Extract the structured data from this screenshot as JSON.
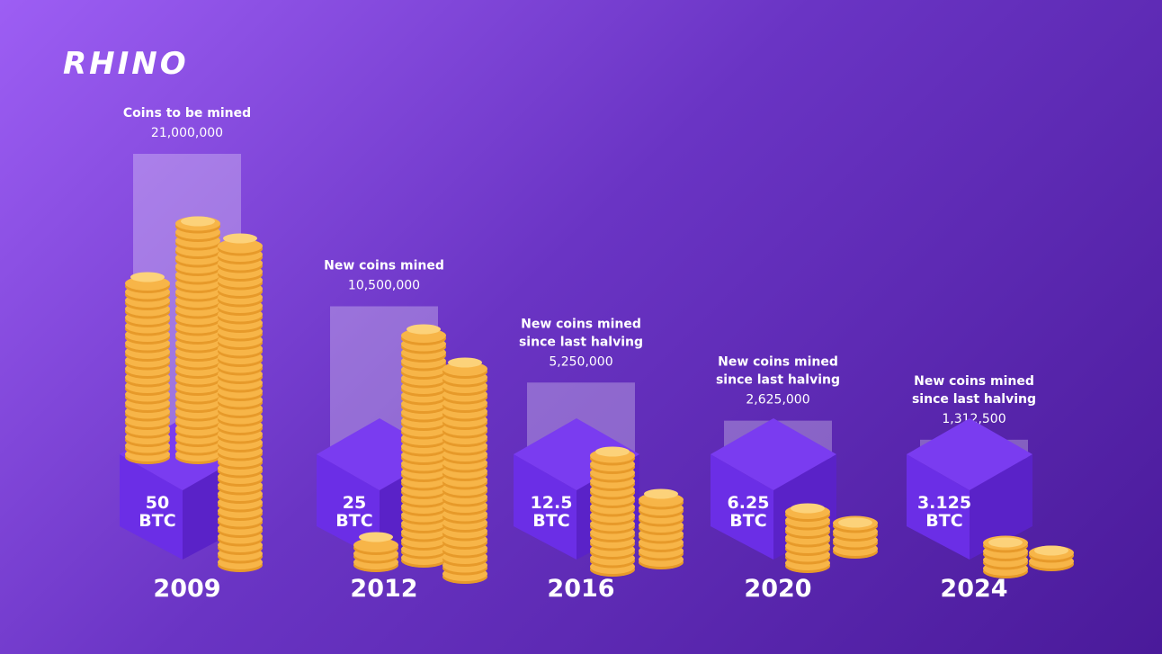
{
  "brand": {
    "logo_text": "RHINO"
  },
  "colors": {
    "bg_start": "#9d5ef4",
    "bg_end": "#4a1a9a",
    "cube_top": "#7a3cf0",
    "cube_left": "#6b2ee6",
    "cube_right": "#5a22c8",
    "coin": "#f7b548",
    "coin_edge": "#e79a2a",
    "bar": "#ffffff"
  },
  "chart_data": {
    "type": "bar",
    "categories": [
      "2009",
      "2012",
      "2016",
      "2020",
      "2024"
    ],
    "rewards": [
      [
        "50",
        "BTC"
      ],
      [
        "25",
        "BTC"
      ],
      [
        "12.5",
        "BTC"
      ],
      [
        "6.25",
        "BTC"
      ],
      [
        "3.125",
        "BTC"
      ]
    ],
    "labels": [
      [
        "Coins to be mined"
      ],
      [
        "New coins mined"
      ],
      [
        "New coins mined",
        "since last halving"
      ],
      [
        "New coins mined",
        "since last halving"
      ],
      [
        "New coins mined",
        "since last halving"
      ]
    ],
    "value_labels": [
      "21,000,000",
      "10,500,000",
      "5,250,000",
      "2,625,000",
      "1,312,500"
    ],
    "values": [
      21000000,
      10500000,
      5250000,
      2625000,
      1312500
    ]
  }
}
